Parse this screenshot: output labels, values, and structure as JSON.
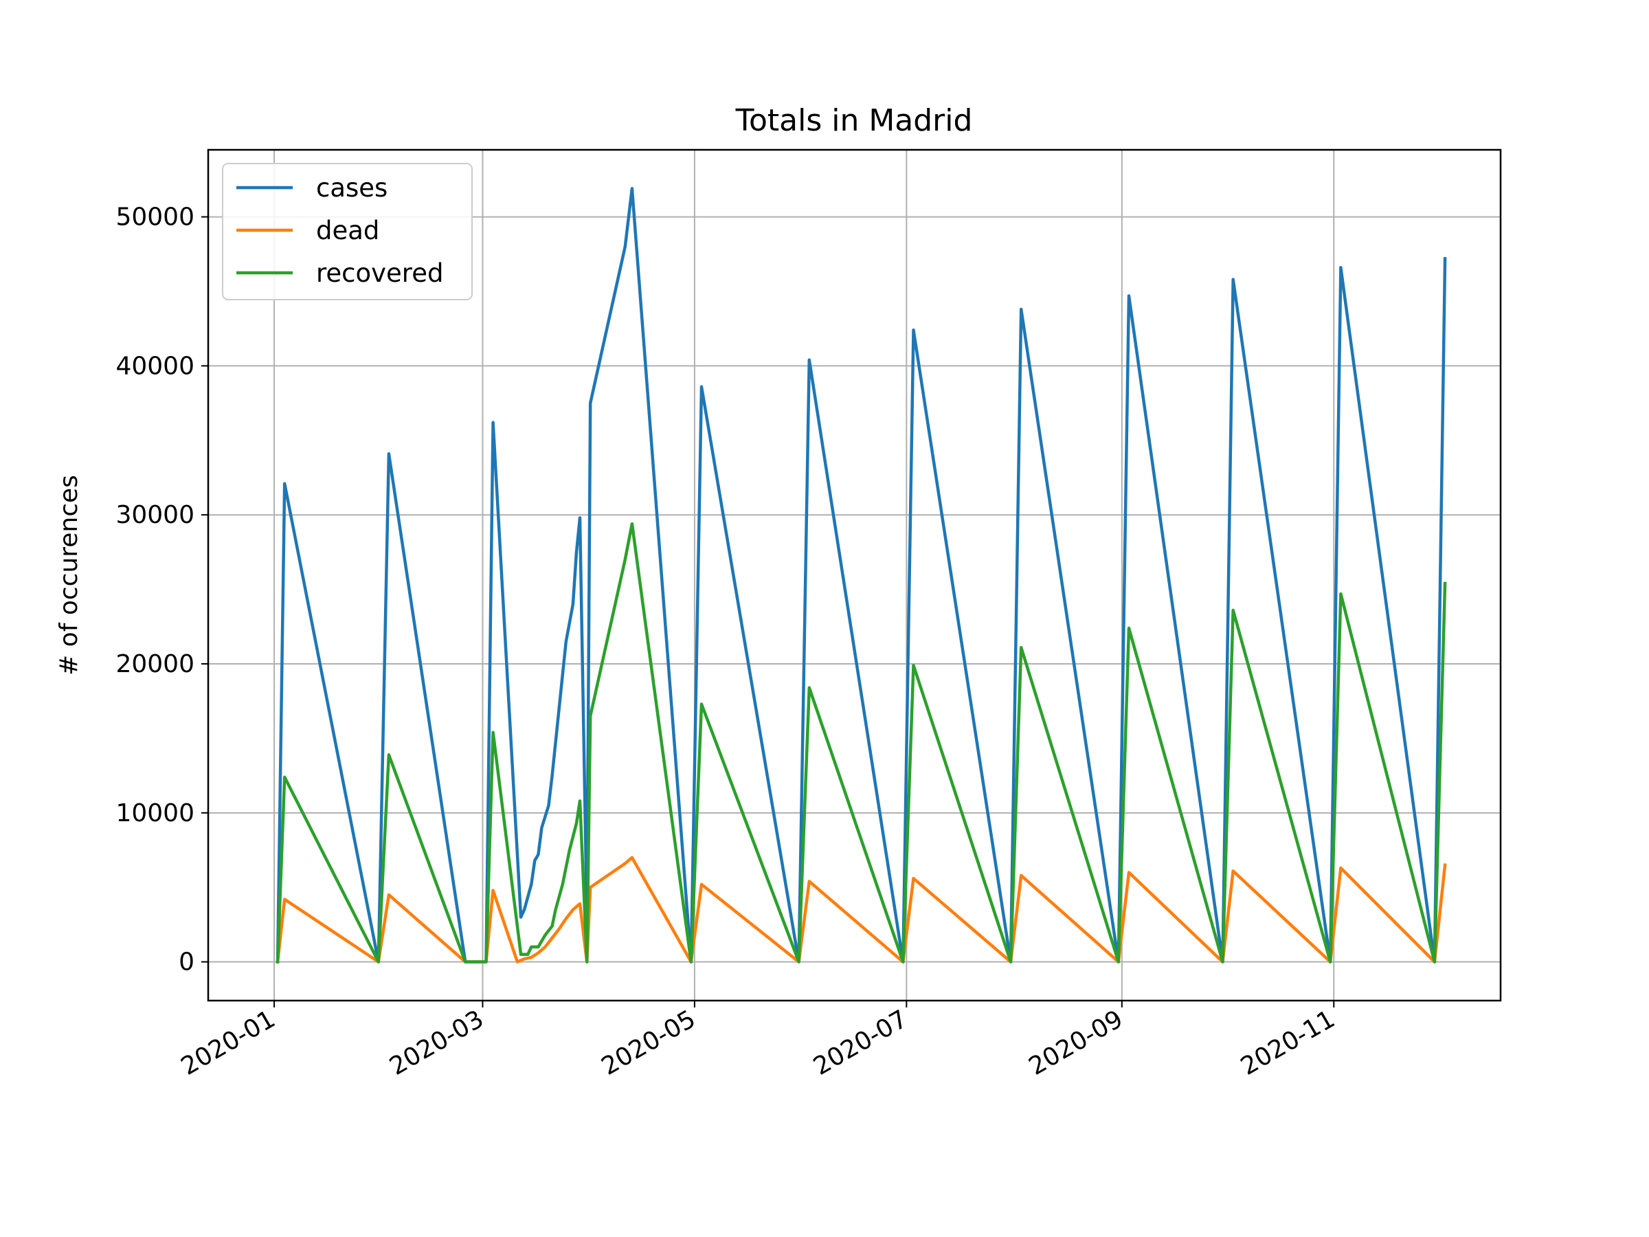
{
  "chart_data": {
    "type": "line",
    "title": "Totals in Madrid",
    "xlabel": "",
    "ylabel": "# of occurences",
    "x_scale": "date",
    "xlim": [
      "2019-12-13",
      "2020-12-19"
    ],
    "ylim": [
      -2600,
      54500
    ],
    "grid": true,
    "legend_position": "top-left",
    "x_ticks": [
      "2020-01-01",
      "2020-03-01",
      "2020-05-01",
      "2020-07-01",
      "2020-09-01",
      "2020-11-01"
    ],
    "x_tick_labels": [
      "2020-01",
      "2020-03",
      "2020-05",
      "2020-07",
      "2020-09",
      "2020-11"
    ],
    "y_ticks": [
      0,
      10000,
      20000,
      30000,
      40000,
      50000
    ],
    "y_tick_labels": [
      "0",
      "10000",
      "20000",
      "30000",
      "40000",
      "50000"
    ],
    "series": [
      {
        "name": "cases",
        "color": "#1f77b4",
        "points": [
          [
            "2020-01-02",
            0
          ],
          [
            "2020-01-04",
            32100
          ],
          [
            "2020-01-31",
            0
          ],
          [
            "2020-02-03",
            34100
          ],
          [
            "2020-02-25",
            0
          ],
          [
            "2020-03-02",
            0
          ],
          [
            "2020-03-04",
            36200
          ],
          [
            "2020-03-12",
            3000
          ],
          [
            "2020-03-13",
            3500
          ],
          [
            "2020-03-15",
            5200
          ],
          [
            "2020-03-16",
            6800
          ],
          [
            "2020-03-17",
            7200
          ],
          [
            "2020-03-18",
            9000
          ],
          [
            "2020-03-20",
            10500
          ],
          [
            "2020-03-21",
            12500
          ],
          [
            "2020-03-23",
            17000
          ],
          [
            "2020-03-25",
            21500
          ],
          [
            "2020-03-27",
            24000
          ],
          [
            "2020-03-28",
            27500
          ],
          [
            "2020-03-29",
            29800
          ],
          [
            "2020-03-31",
            3000
          ],
          [
            "2020-04-01",
            37500
          ],
          [
            "2020-04-11",
            48000
          ],
          [
            "2020-04-13",
            51900
          ],
          [
            "2020-04-30",
            0
          ],
          [
            "2020-05-03",
            38600
          ],
          [
            "2020-05-31",
            0
          ],
          [
            "2020-06-03",
            40400
          ],
          [
            "2020-06-30",
            0
          ],
          [
            "2020-07-03",
            42400
          ],
          [
            "2020-07-31",
            0
          ],
          [
            "2020-08-03",
            43800
          ],
          [
            "2020-08-31",
            0
          ],
          [
            "2020-09-03",
            44700
          ],
          [
            "2020-09-30",
            0
          ],
          [
            "2020-10-03",
            45800
          ],
          [
            "2020-10-31",
            0
          ],
          [
            "2020-11-03",
            46600
          ],
          [
            "2020-11-30",
            0
          ],
          [
            "2020-12-03",
            47200
          ]
        ]
      },
      {
        "name": "dead",
        "color": "#ff7f0e",
        "points": [
          [
            "2020-01-02",
            0
          ],
          [
            "2020-01-04",
            4200
          ],
          [
            "2020-01-31",
            0
          ],
          [
            "2020-02-03",
            4500
          ],
          [
            "2020-02-25",
            0
          ],
          [
            "2020-03-02",
            0
          ],
          [
            "2020-03-04",
            4800
          ],
          [
            "2020-03-11",
            0
          ],
          [
            "2020-03-13",
            200
          ],
          [
            "2020-03-15",
            300
          ],
          [
            "2020-03-17",
            600
          ],
          [
            "2020-03-19",
            1000
          ],
          [
            "2020-03-21",
            1600
          ],
          [
            "2020-03-23",
            2200
          ],
          [
            "2020-03-25",
            2900
          ],
          [
            "2020-03-27",
            3500
          ],
          [
            "2020-03-29",
            3900
          ],
          [
            "2020-03-31",
            0
          ],
          [
            "2020-04-01",
            5000
          ],
          [
            "2020-04-11",
            6600
          ],
          [
            "2020-04-13",
            7000
          ],
          [
            "2020-04-30",
            0
          ],
          [
            "2020-05-03",
            5200
          ],
          [
            "2020-05-31",
            0
          ],
          [
            "2020-06-03",
            5400
          ],
          [
            "2020-06-30",
            0
          ],
          [
            "2020-07-03",
            5600
          ],
          [
            "2020-07-31",
            0
          ],
          [
            "2020-08-03",
            5800
          ],
          [
            "2020-08-31",
            0
          ],
          [
            "2020-09-03",
            6000
          ],
          [
            "2020-09-30",
            0
          ],
          [
            "2020-10-03",
            6100
          ],
          [
            "2020-10-31",
            0
          ],
          [
            "2020-11-03",
            6300
          ],
          [
            "2020-11-30",
            0
          ],
          [
            "2020-12-03",
            6500
          ]
        ]
      },
      {
        "name": "recovered",
        "color": "#2ca02c",
        "points": [
          [
            "2020-01-02",
            0
          ],
          [
            "2020-01-04",
            12400
          ],
          [
            "2020-01-31",
            0
          ],
          [
            "2020-02-03",
            13900
          ],
          [
            "2020-02-25",
            0
          ],
          [
            "2020-03-02",
            0
          ],
          [
            "2020-03-04",
            15400
          ],
          [
            "2020-03-12",
            500
          ],
          [
            "2020-03-14",
            500
          ],
          [
            "2020-03-15",
            1000
          ],
          [
            "2020-03-17",
            1000
          ],
          [
            "2020-03-19",
            1800
          ],
          [
            "2020-03-21",
            2400
          ],
          [
            "2020-03-22",
            3500
          ],
          [
            "2020-03-24",
            5200
          ],
          [
            "2020-03-26",
            7500
          ],
          [
            "2020-03-28",
            9300
          ],
          [
            "2020-03-29",
            10800
          ],
          [
            "2020-03-31",
            0
          ],
          [
            "2020-04-01",
            16500
          ],
          [
            "2020-04-11",
            27000
          ],
          [
            "2020-04-13",
            29400
          ],
          [
            "2020-04-30",
            0
          ],
          [
            "2020-05-03",
            17300
          ],
          [
            "2020-05-31",
            0
          ],
          [
            "2020-06-03",
            18400
          ],
          [
            "2020-06-30",
            0
          ],
          [
            "2020-07-03",
            19900
          ],
          [
            "2020-07-31",
            0
          ],
          [
            "2020-08-03",
            21100
          ],
          [
            "2020-08-31",
            0
          ],
          [
            "2020-09-03",
            22400
          ],
          [
            "2020-09-30",
            0
          ],
          [
            "2020-10-03",
            23600
          ],
          [
            "2020-10-31",
            0
          ],
          [
            "2020-11-03",
            24700
          ],
          [
            "2020-11-30",
            0
          ],
          [
            "2020-12-03",
            25400
          ]
        ]
      }
    ]
  }
}
